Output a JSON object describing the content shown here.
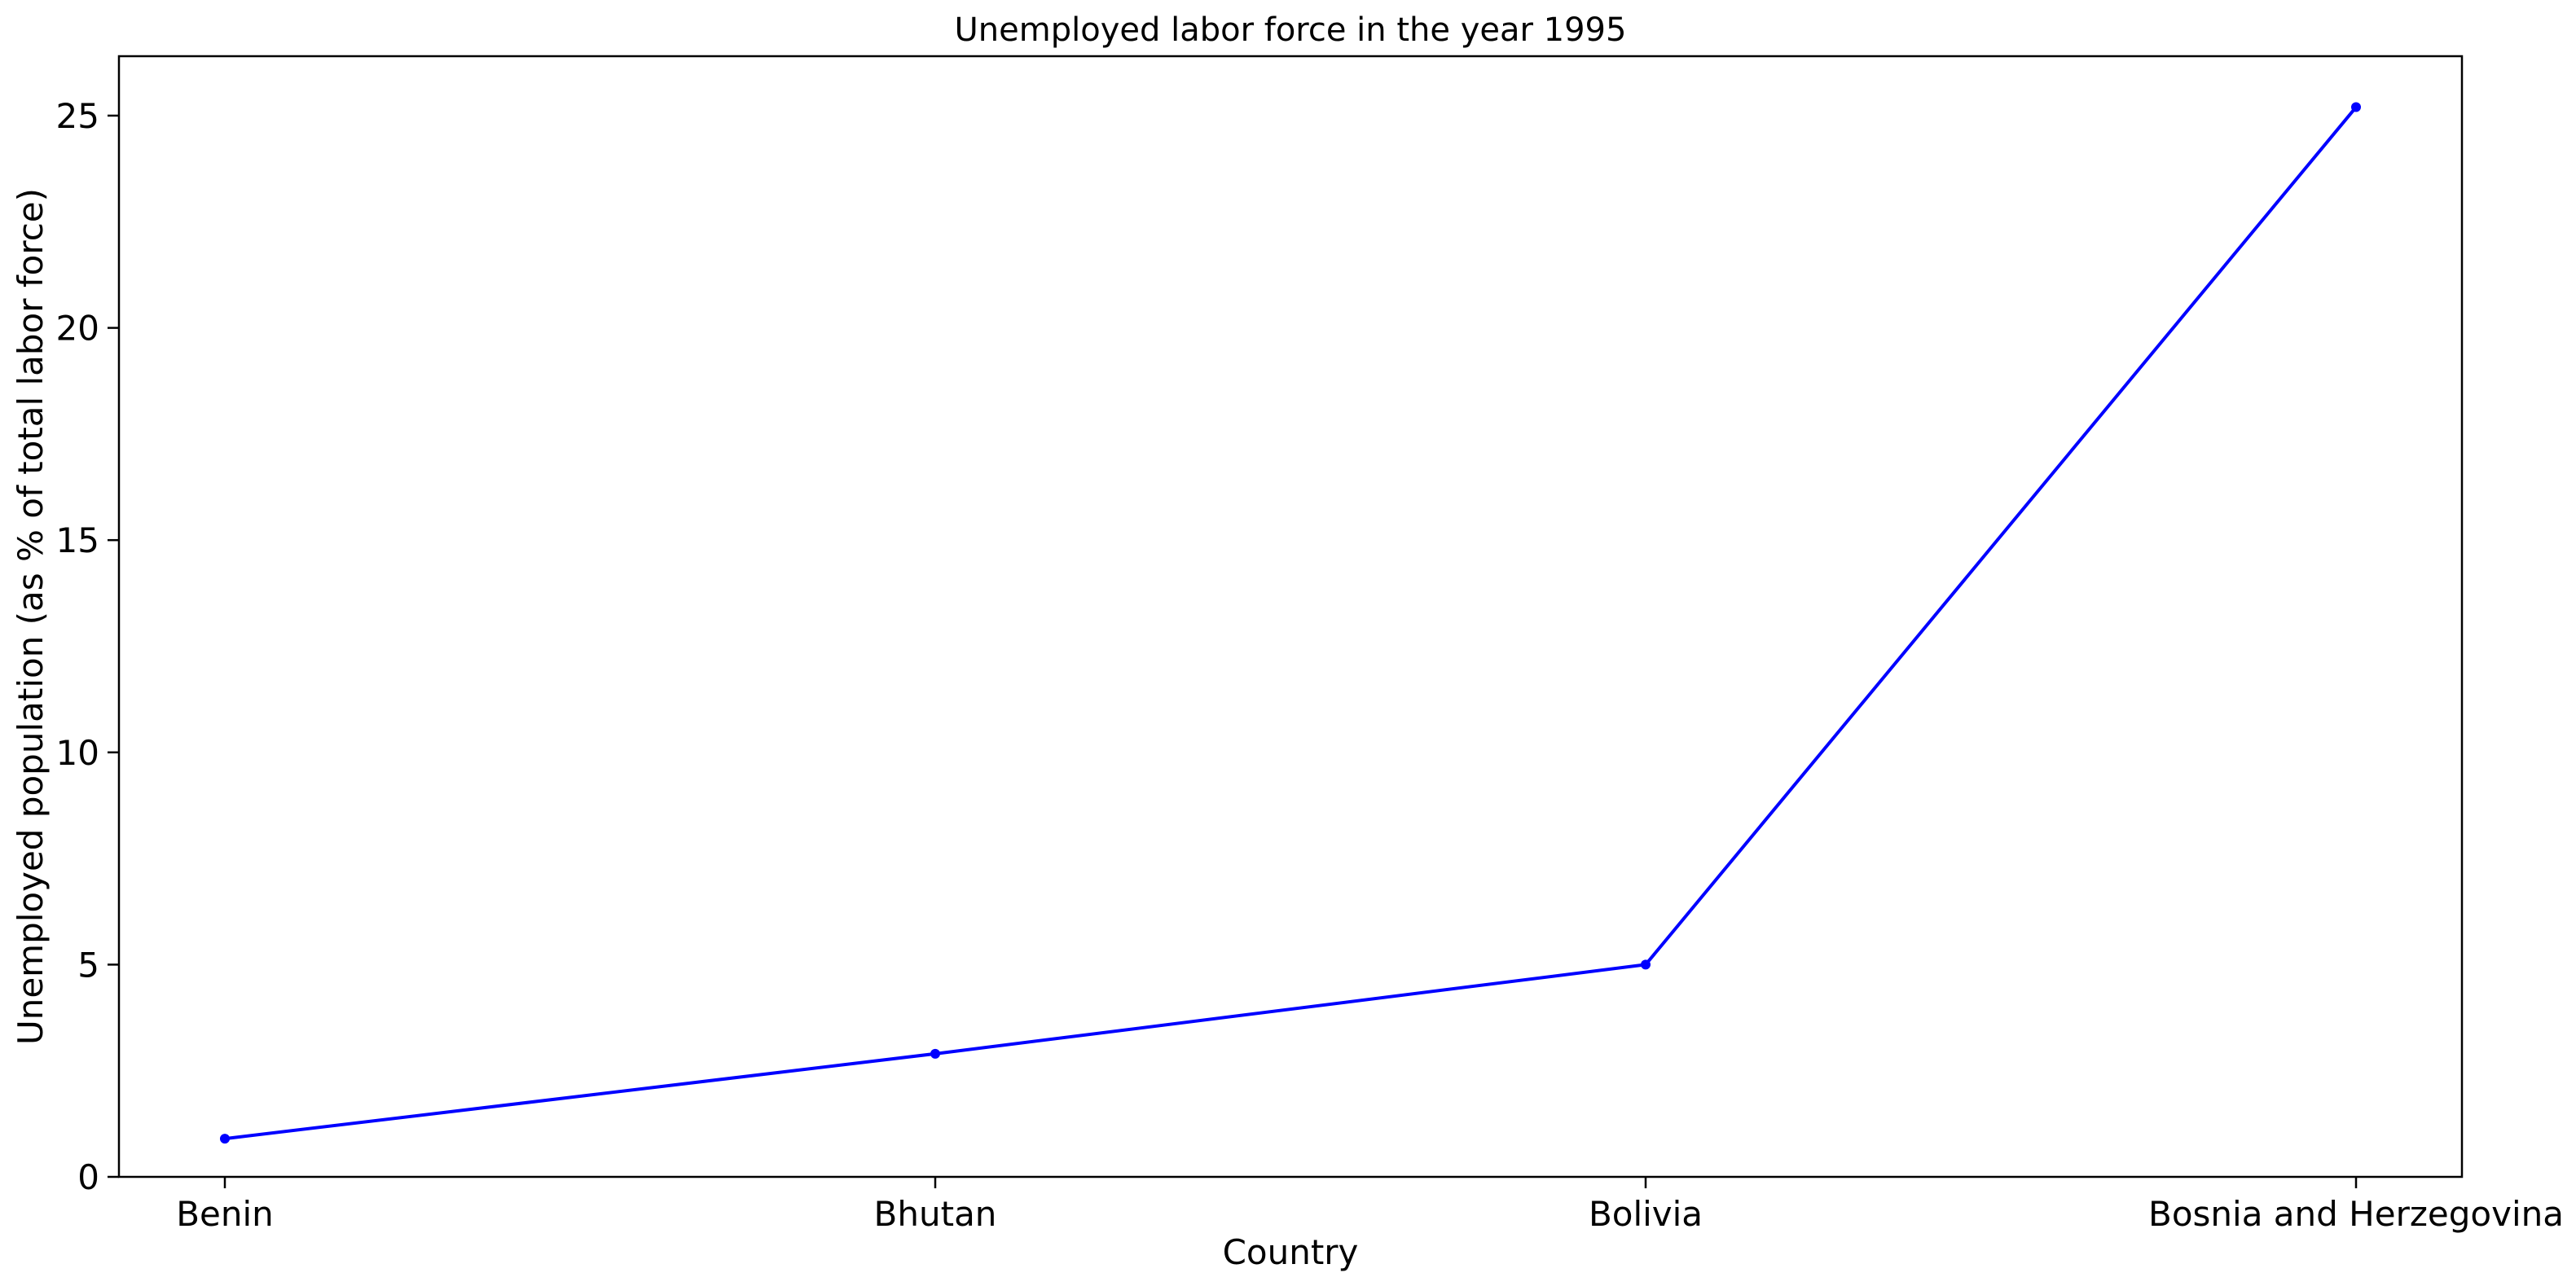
{
  "chart_data": {
    "type": "line",
    "title": "Unemployed labor force in the year 1995",
    "xlabel": "Country",
    "ylabel": "Unemployed population (as % of total labor force)",
    "categories": [
      "Benin",
      "Bhutan",
      "Bolivia",
      "Bosnia and Herzegovina"
    ],
    "series": [
      {
        "values": [
          0.9,
          2.9,
          5.0,
          25.2
        ],
        "color": "#0000ff",
        "marker": "circle"
      }
    ],
    "ylim": [
      0,
      26.4
    ],
    "yticks": [
      0,
      5,
      10,
      15,
      20,
      25
    ],
    "grid": false
  }
}
